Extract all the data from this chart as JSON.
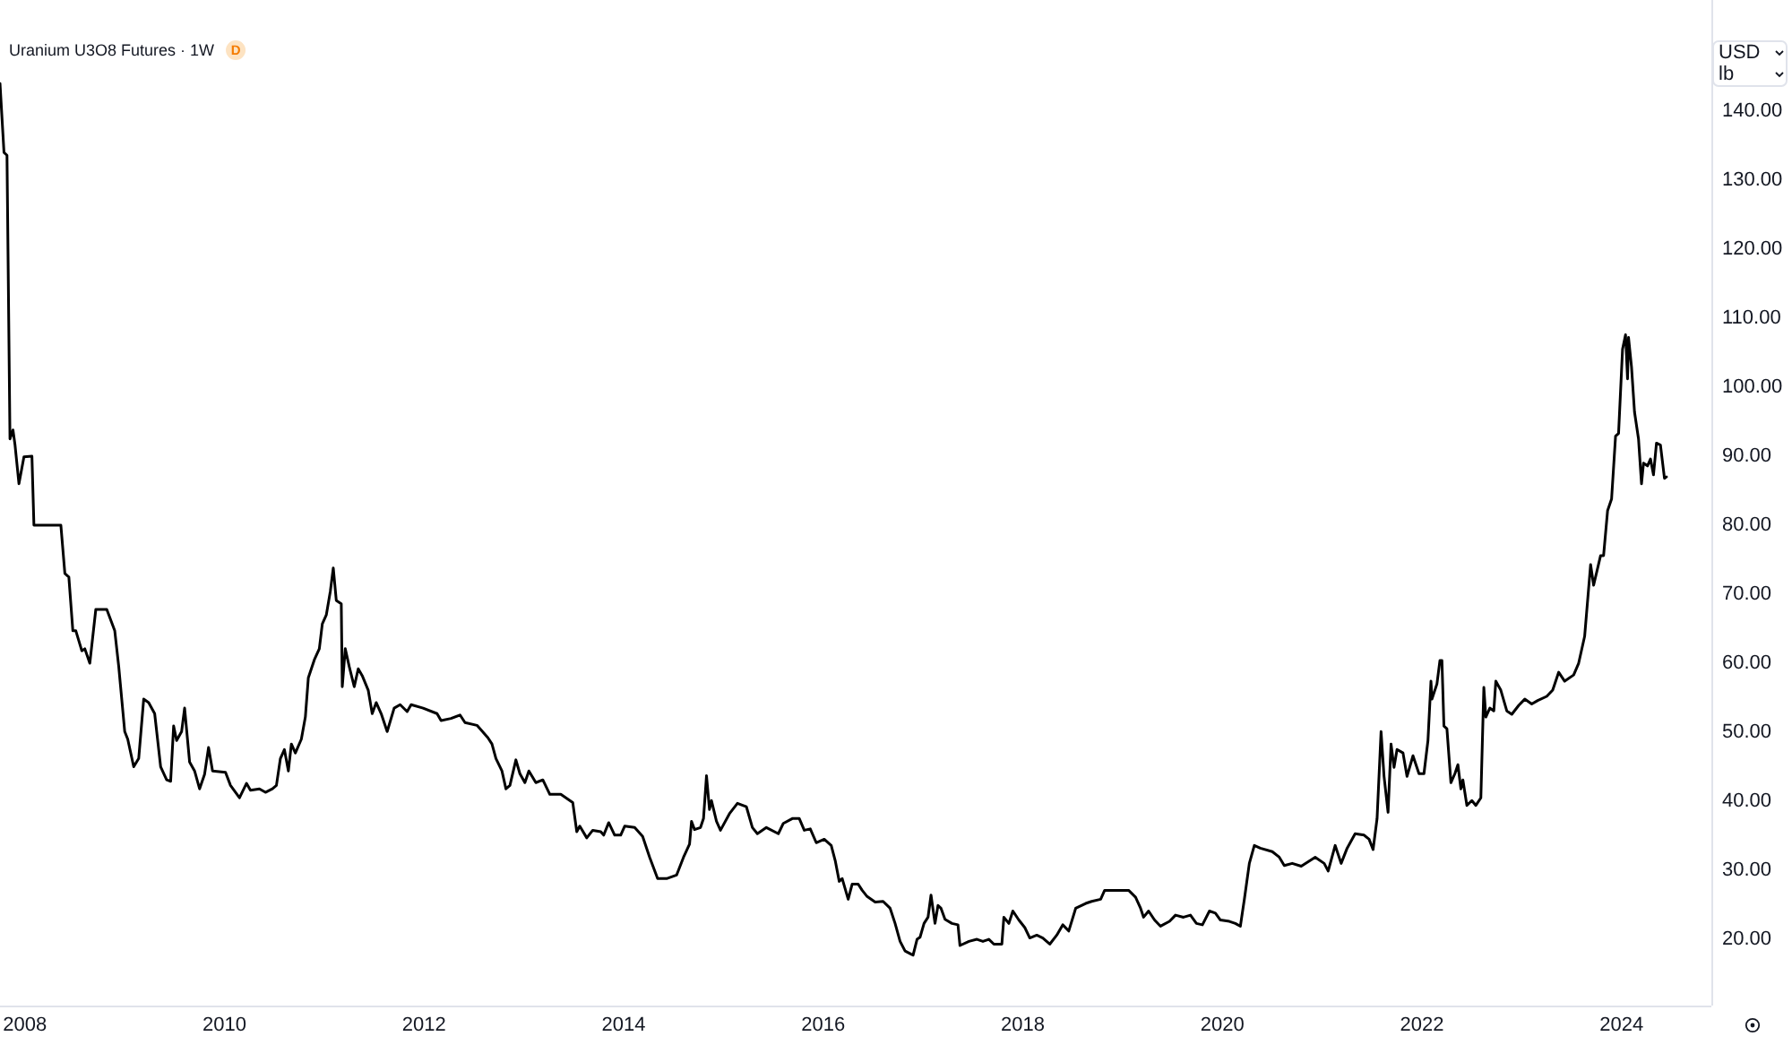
{
  "chart_data": {
    "type": "line",
    "title": "Uranium U3O8 Futures · 1W",
    "color": "#000000",
    "x": [
      2007.75,
      2007.79,
      2007.82,
      2007.85,
      2007.88,
      2007.9,
      2007.94,
      2007.99,
      2008.07,
      2008.09,
      2008.36,
      2008.4,
      2008.44,
      2008.48,
      2008.51,
      2008.57,
      2008.6,
      2008.65,
      2008.71,
      2008.82,
      2008.9,
      2008.94,
      2009,
      2009.03,
      2009.09,
      2009.14,
      2009.19,
      2009.24,
      2009.3,
      2009.36,
      2009.42,
      2009.46,
      2009.49,
      2009.52,
      2009.57,
      2009.6,
      2009.65,
      2009.7,
      2009.75,
      2009.8,
      2009.84,
      2009.88,
      2010.01,
      2010.06,
      2010.15,
      2010.22,
      2010.26,
      2010.35,
      2010.41,
      2010.48,
      2010.52,
      2010.56,
      2010.6,
      2010.64,
      2010.67,
      2010.71,
      2010.77,
      2010.81,
      2010.84,
      2010.9,
      2010.95,
      2010.98,
      2011.02,
      2011.06,
      2011.09,
      2011.12,
      2011.17,
      2011.18,
      2011.21,
      2011.25,
      2011.3,
      2011.34,
      2011.38,
      2011.44,
      2011.48,
      2011.52,
      2011.57,
      2011.63,
      2011.7,
      2011.76,
      2011.83,
      2011.87,
      2011.99,
      2012.13,
      2012.17,
      2012.27,
      2012.36,
      2012.41,
      2012.53,
      2012.64,
      2012.68,
      2012.72,
      2012.78,
      2012.82,
      2012.86,
      2012.92,
      2012.96,
      2013.01,
      2013.05,
      2013.12,
      2013.19,
      2013.26,
      2013.37,
      2013.49,
      2013.53,
      2013.56,
      2013.63,
      2013.69,
      2013.77,
      2013.8,
      2013.85,
      2013.91,
      2013.97,
      2014.01,
      2014.11,
      2014.19,
      2014.26,
      2014.34,
      2014.43,
      2014.53,
      2014.6,
      2014.66,
      2014.68,
      2014.71,
      2014.77,
      2014.8,
      2014.83,
      2014.86,
      2014.88,
      2014.93,
      2014.97,
      2015.06,
      2015.14,
      2015.23,
      2015.29,
      2015.34,
      2015.43,
      2015.55,
      2015.6,
      2015.69,
      2015.76,
      2015.81,
      2015.87,
      2015.93,
      2016.01,
      2016.08,
      2016.12,
      2016.16,
      2016.19,
      2016.25,
      2016.29,
      2016.35,
      2016.39,
      2016.44,
      2016.52,
      2016.6,
      2016.67,
      2016.72,
      2016.77,
      2016.82,
      2016.9,
      2016.94,
      2016.97,
      2017.01,
      2017.05,
      2017.08,
      2017.12,
      2017.15,
      2017.18,
      2017.22,
      2017.29,
      2017.35,
      2017.37,
      2017.46,
      2017.54,
      2017.6,
      2017.66,
      2017.71,
      2017.79,
      2017.81,
      2017.86,
      2017.9,
      2017.96,
      2018.02,
      2018.07,
      2018.14,
      2018.2,
      2018.27,
      2018.34,
      2018.4,
      2018.46,
      2018.53,
      2018.63,
      2018.69,
      2018.78,
      2018.82,
      2019.06,
      2019.13,
      2019.18,
      2019.21,
      2019.26,
      2019.32,
      2019.38,
      2019.47,
      2019.53,
      2019.61,
      2019.68,
      2019.74,
      2019.8,
      2019.87,
      2019.93,
      2019.98,
      2020.07,
      2020.13,
      2020.18,
      2020.22,
      2020.27,
      2020.32,
      2020.38,
      2020.5,
      2020.57,
      2020.62,
      2020.7,
      2020.79,
      2020.93,
      2021.02,
      2021.06,
      2021.13,
      2021.19,
      2021.25,
      2021.33,
      2021.42,
      2021.47,
      2021.51,
      2021.55,
      2021.59,
      2021.62,
      2021.66,
      2021.69,
      2021.72,
      2021.75,
      2021.81,
      2021.85,
      2021.91,
      2021.97,
      2022.02,
      2022.06,
      2022.09,
      2022.1,
      2022.15,
      2022.18,
      2022.2,
      2022.22,
      2022.25,
      2022.29,
      2022.33,
      2022.36,
      2022.39,
      2022.41,
      2022.45,
      2022.5,
      2022.54,
      2022.59,
      2022.62,
      2022.64,
      2022.68,
      2022.72,
      2022.74,
      2022.79,
      2022.85,
      2022.9,
      2022.97,
      2023.03,
      2023.1,
      2023.16,
      2023.25,
      2023.31,
      2023.37,
      2023.43,
      2023.52,
      2023.57,
      2023.63,
      2023.69,
      2023.72,
      2023.79,
      2023.82,
      2023.86,
      2023.9,
      2023.94,
      2023.97,
      2024.01,
      2024.04,
      2024.06,
      2024.07,
      2024.1,
      2024.13,
      2024.17,
      2024.2,
      2024.22,
      2024.26,
      2024.29,
      2024.32,
      2024.35,
      2024.39,
      2024.43,
      2024.45
    ],
    "values": [
      144,
      134,
      133.6,
      92.5,
      93.8,
      91.7,
      86,
      89.9,
      90,
      80,
      80,
      73,
      72.5,
      64.7,
      64.7,
      61.8,
      62.1,
      60,
      67.8,
      67.8,
      64.7,
      59.5,
      50.1,
      49,
      45,
      46.2,
      54.8,
      54.3,
      52.7,
      45,
      43.1,
      42.9,
      50.9,
      48.8,
      50.1,
      53.5,
      45.7,
      44.4,
      41.8,
      43.9,
      47.8,
      44.4,
      44.2,
      42.3,
      40.5,
      42.6,
      41.6,
      41.8,
      41.3,
      41.8,
      42.3,
      46.2,
      47.5,
      44.4,
      48.3,
      47,
      49,
      52.2,
      57.9,
      60.5,
      62.1,
      65.7,
      67,
      70.4,
      73.8,
      69.1,
      68.6,
      56.6,
      62.1,
      59.5,
      56.6,
      59.2,
      58.2,
      56.1,
      52.7,
      54.3,
      52.7,
      50.1,
      53.5,
      54,
      53,
      54,
      53.5,
      52.7,
      51.7,
      52,
      52.5,
      51.4,
      51,
      49.2,
      48.3,
      46.2,
      44.4,
      41.8,
      42.3,
      46,
      44,
      42.7,
      44.4,
      42.7,
      43.1,
      41,
      41,
      39.8,
      35.6,
      36.4,
      34.7,
      35.8,
      35.6,
      35.1,
      36.9,
      35.1,
      35.1,
      36.4,
      36.2,
      34.9,
      31.9,
      28.8,
      28.8,
      29.3,
      31.9,
      33.8,
      37.1,
      35.9,
      36.2,
      37.5,
      43.7,
      38.8,
      40.1,
      37.1,
      35.8,
      38.2,
      39.7,
      39.2,
      36.2,
      35.3,
      36.2,
      35.3,
      36.8,
      37.5,
      37.5,
      35.8,
      36,
      34,
      34.5,
      33.6,
      31.4,
      28.4,
      28.8,
      25.8,
      28,
      28,
      27.1,
      26.2,
      25.4,
      25.5,
      24.5,
      22.3,
      19.7,
      18.3,
      17.7,
      20,
      20.3,
      22.3,
      23.2,
      26.4,
      22.3,
      24.9,
      24.5,
      22.9,
      22.3,
      22.1,
      19.1,
      19.7,
      20,
      19.7,
      20,
      19.3,
      19.3,
      23.2,
      22.3,
      24.1,
      22.8,
      21.7,
      20.2,
      20.6,
      20.2,
      19.3,
      20.6,
      22.1,
      21.2,
      24.5,
      25.2,
      25.5,
      25.8,
      27.1,
      27.1,
      26.1,
      24.5,
      23.2,
      24.1,
      22.8,
      21.9,
      22.6,
      23.5,
      23.2,
      23.5,
      22.3,
      22.1,
      24.1,
      23.8,
      22.8,
      22.6,
      22.3,
      21.9,
      25.8,
      31,
      33.6,
      33.2,
      32.7,
      31.9,
      30.7,
      31,
      30.6,
      31.9,
      31,
      29.9,
      33.6,
      31,
      33.2,
      35.3,
      35.1,
      34.5,
      33,
      37.5,
      50.1,
      43.6,
      38.4,
      48.3,
      44.9,
      47.5,
      47,
      43.6,
      46.6,
      44,
      44,
      48.8,
      57.4,
      54.8,
      57,
      60.4,
      60.4,
      50.9,
      50.5,
      42.7,
      44,
      45.3,
      41.8,
      43.1,
      39.4,
      40.1,
      39.4,
      40.5,
      56.5,
      52.2,
      53.5,
      53.1,
      57.4,
      56.1,
      53.1,
      52.6,
      53.9,
      54.8,
      54.1,
      54.6,
      55.2,
      56.1,
      58.7,
      57.4,
      58.3,
      60,
      63.9,
      74.3,
      71.3,
      75.6,
      75.6,
      82.1,
      83.8,
      92.9,
      93.3,
      105.5,
      107.6,
      101.2,
      107.2,
      102.9,
      96.4,
      92.5,
      86,
      89,
      88.6,
      89.6,
      87.3,
      91.9,
      91.6,
      86.8,
      87
    ],
    "xlim": [
      2007.75,
      2024.9
    ],
    "xticks": [
      2008,
      2010,
      2012,
      2014,
      2016,
      2018,
      2020,
      2022,
      2024
    ],
    "ylim": [
      10.4,
      156.1
    ],
    "yticks": [
      {
        "value": 20,
        "label": "20.00"
      },
      {
        "value": 30,
        "label": "30.00"
      },
      {
        "value": 40,
        "label": "40.00"
      },
      {
        "value": 50,
        "label": "50.00"
      },
      {
        "value": 60,
        "label": "60.00"
      },
      {
        "value": 70,
        "label": "70.00"
      },
      {
        "value": 80,
        "label": "80.00"
      },
      {
        "value": 90,
        "label": "90.00"
      },
      {
        "value": 100,
        "label": "100.00"
      },
      {
        "value": 110,
        "label": "110.00"
      },
      {
        "value": 120,
        "label": "120.00"
      },
      {
        "value": 130,
        "label": "130.00"
      },
      {
        "value": 140,
        "label": "140.00"
      }
    ],
    "annotations": [
      "D",
      "USD",
      "lb"
    ]
  }
}
